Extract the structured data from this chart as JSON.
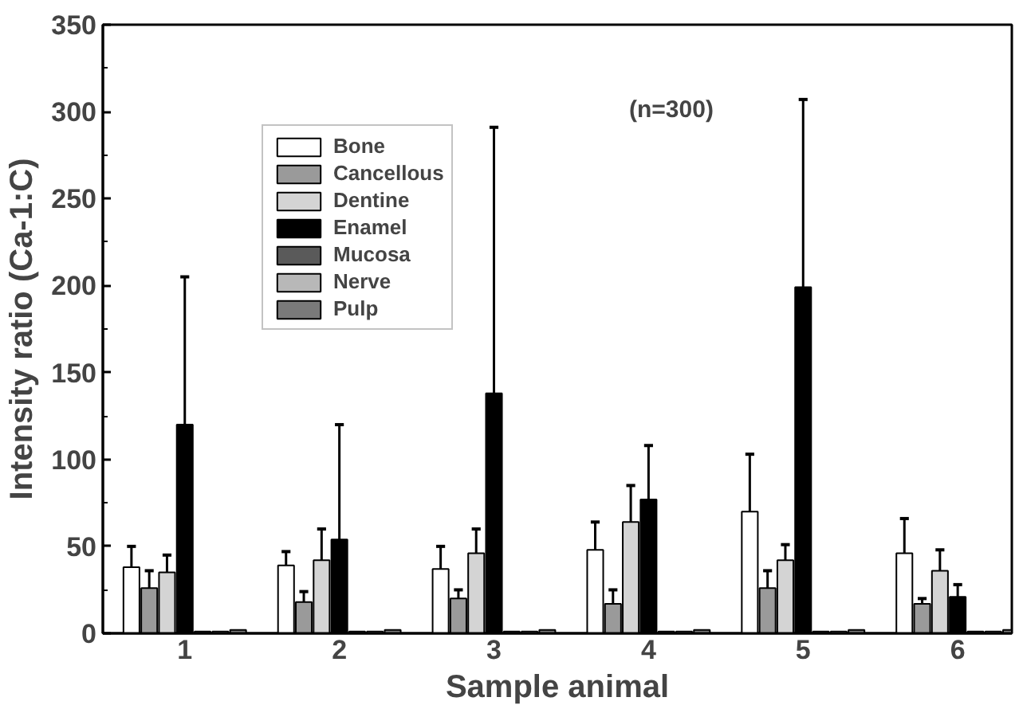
{
  "chart_data": {
    "type": "bar",
    "xlabel": "Sample animal",
    "ylabel": "Intensity ratio (Ca-1:C)",
    "categories": [
      "1",
      "2",
      "3",
      "4",
      "5",
      "6"
    ],
    "series": [
      {
        "name": "Bone",
        "color": "#ffffff",
        "values": [
          38,
          39,
          37,
          48,
          70,
          46
        ],
        "errors": [
          [
            38,
            50
          ],
          [
            39,
            47
          ],
          [
            37,
            50
          ],
          [
            48,
            64
          ],
          [
            70,
            103
          ],
          [
            46,
            66
          ]
        ]
      },
      {
        "name": "Cancellous",
        "color": "#9a9a9a",
        "values": [
          26,
          18,
          20,
          17,
          26,
          17
        ],
        "errors": [
          [
            26,
            36
          ],
          [
            18,
            24
          ],
          [
            20,
            25
          ],
          [
            17,
            25
          ],
          [
            26,
            36
          ],
          [
            17,
            20
          ]
        ]
      },
      {
        "name": "Dentine",
        "color": "#d4d4d4",
        "values": [
          35,
          42,
          46,
          64,
          42,
          36
        ],
        "errors": [
          [
            35,
            45
          ],
          [
            42,
            60
          ],
          [
            46,
            60
          ],
          [
            64,
            85
          ],
          [
            42,
            51
          ],
          [
            36,
            48
          ]
        ]
      },
      {
        "name": "Enamel",
        "color": "#000000",
        "values": [
          120,
          54,
          138,
          77,
          199,
          21
        ],
        "errors": [
          [
            120,
            205
          ],
          [
            54,
            120
          ],
          [
            138,
            291
          ],
          [
            77,
            108
          ],
          [
            199,
            307
          ],
          [
            21,
            28
          ]
        ]
      },
      {
        "name": "Mucosa",
        "color": "#5a5a5a",
        "values": [
          1,
          1,
          1,
          1,
          1,
          1
        ]
      },
      {
        "name": "Nerve",
        "color": "#b8b8b8",
        "values": [
          1,
          1,
          1,
          1,
          1,
          1
        ]
      },
      {
        "name": "Pulp",
        "color": "#7a7a7a",
        "values": [
          2,
          2,
          2,
          2,
          2,
          2
        ]
      }
    ],
    "ylim": [
      0,
      350
    ],
    "yticks": [
      0,
      50,
      100,
      150,
      200,
      250,
      300,
      350
    ],
    "grid": false,
    "legend": "top left",
    "annotations": [
      "(n=300)"
    ]
  }
}
